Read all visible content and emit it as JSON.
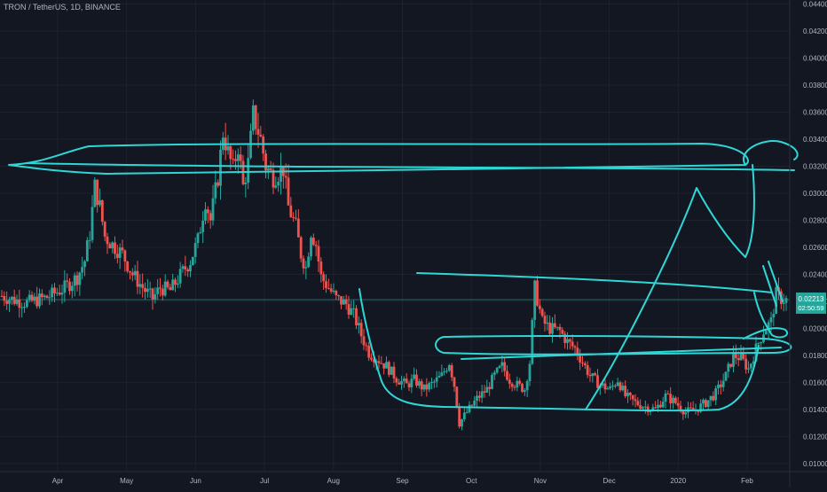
{
  "header": {
    "symbol": "TRON / TetherUS, 1D, BINANCE"
  },
  "last_price": {
    "value": "0.02213",
    "countdown": "02:50:59"
  },
  "colors": {
    "background": "#131722",
    "grid": "#1e222d",
    "up": "#26a69a",
    "down": "#ef5350",
    "drawing": "#2fd6d6",
    "axis_text": "#b2b5be",
    "price_tag": "#26a69a"
  },
  "chart_data": {
    "type": "candlestick",
    "title": "TRON / TetherUS, 1D, BINANCE",
    "xlabel": "",
    "ylabel": "",
    "ylim": [
      0.0094,
      0.0443
    ],
    "yticks": [
      "0.04400",
      "0.04200",
      "0.04000",
      "0.03800",
      "0.03600",
      "0.03400",
      "0.03200",
      "0.03000",
      "0.02800",
      "0.02600",
      "0.02400",
      "0.02200",
      "0.02000",
      "0.01800",
      "0.01600",
      "0.01400",
      "0.01200",
      "0.01000"
    ],
    "xticks": [
      "Apr",
      "May",
      "Jun",
      "Jul",
      "Aug",
      "Sep",
      "Oct",
      "Nov",
      "Dec",
      "2020",
      "Feb"
    ],
    "grid": true,
    "reference_line": 0.02213,
    "price_path": [
      [
        0,
        0.0224
      ],
      [
        5,
        0.0221
      ],
      [
        10,
        0.0219
      ],
      [
        18,
        0.0223
      ],
      [
        25,
        0.023
      ],
      [
        30,
        0.0238
      ],
      [
        33,
        0.025
      ],
      [
        35,
        0.027
      ],
      [
        37,
        0.0305
      ],
      [
        39,
        0.029
      ],
      [
        41,
        0.0268
      ],
      [
        44,
        0.0262
      ],
      [
        48,
        0.0255
      ],
      [
        52,
        0.024
      ],
      [
        57,
        0.0228
      ],
      [
        60,
        0.0222
      ],
      [
        63,
        0.023
      ],
      [
        67,
        0.0228
      ],
      [
        72,
        0.0242
      ],
      [
        75,
        0.025
      ],
      [
        78,
        0.0265
      ],
      [
        81,
        0.0295
      ],
      [
        83,
        0.028
      ],
      [
        86,
        0.0312
      ],
      [
        88,
        0.0345
      ],
      [
        90,
        0.033
      ],
      [
        92,
        0.0318
      ],
      [
        94,
        0.0335
      ],
      [
        96,
        0.0305
      ],
      [
        98,
        0.0322
      ],
      [
        100,
        0.0358
      ],
      [
        103,
        0.034
      ],
      [
        105,
        0.032
      ],
      [
        108,
        0.0312
      ],
      [
        112,
        0.0318
      ],
      [
        114,
        0.029
      ],
      [
        117,
        0.0275
      ],
      [
        119,
        0.0255
      ],
      [
        121,
        0.0245
      ],
      [
        123,
        0.0272
      ],
      [
        125,
        0.0262
      ],
      [
        127,
        0.0238
      ],
      [
        130,
        0.023
      ],
      [
        133,
        0.0222
      ],
      [
        137,
        0.0218
      ],
      [
        140,
        0.021
      ],
      [
        143,
        0.0195
      ],
      [
        146,
        0.0182
      ],
      [
        149,
        0.0178
      ],
      [
        153,
        0.0172
      ],
      [
        157,
        0.0163
      ],
      [
        161,
        0.0158
      ],
      [
        164,
        0.0162
      ],
      [
        168,
        0.0155
      ],
      [
        172,
        0.016
      ],
      [
        175,
        0.0165
      ],
      [
        178,
        0.0175
      ],
      [
        180,
        0.0158
      ],
      [
        182,
        0.013
      ],
      [
        185,
        0.0138
      ],
      [
        189,
        0.0148
      ],
      [
        193,
        0.0155
      ],
      [
        196,
        0.0165
      ],
      [
        199,
        0.0172
      ],
      [
        202,
        0.0162
      ],
      [
        205,
        0.0158
      ],
      [
        208,
        0.0155
      ],
      [
        210,
        0.0175
      ],
      [
        212,
        0.023
      ],
      [
        215,
        0.0205
      ],
      [
        218,
        0.02
      ],
      [
        222,
        0.0198
      ],
      [
        225,
        0.019
      ],
      [
        228,
        0.0185
      ],
      [
        231,
        0.0175
      ],
      [
        234,
        0.0165
      ],
      [
        238,
        0.0158
      ],
      [
        242,
        0.0155
      ],
      [
        245,
        0.0162
      ],
      [
        248,
        0.015
      ],
      [
        252,
        0.0145
      ],
      [
        256,
        0.0142
      ],
      [
        260,
        0.014
      ],
      [
        264,
        0.015
      ],
      [
        268,
        0.0145
      ],
      [
        272,
        0.0138
      ],
      [
        276,
        0.014
      ],
      [
        280,
        0.0145
      ],
      [
        284,
        0.0152
      ],
      [
        288,
        0.0165
      ],
      [
        291,
        0.018
      ],
      [
        294,
        0.0178
      ],
      [
        297,
        0.017
      ],
      [
        300,
        0.0185
      ],
      [
        303,
        0.0198
      ],
      [
        306,
        0.0205
      ],
      [
        308,
        0.0225
      ],
      [
        310,
        0.0222
      ],
      [
        312,
        0.0221
      ]
    ]
  }
}
